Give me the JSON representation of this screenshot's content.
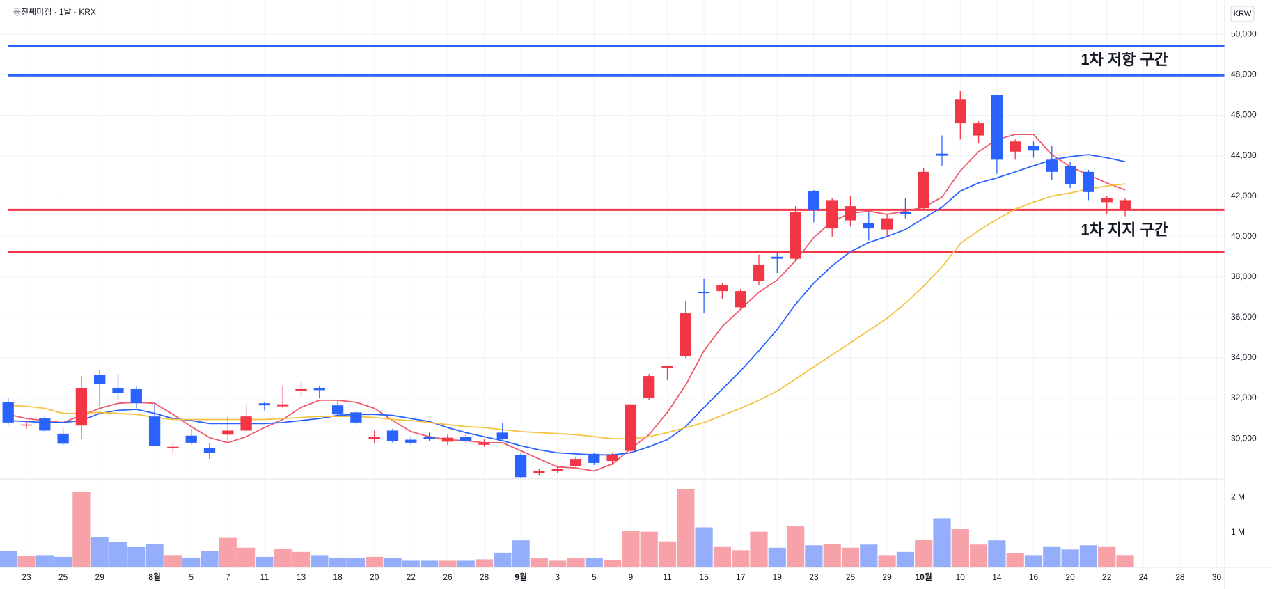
{
  "chart_data": {
    "type": "candlestick",
    "title": "동진쎄미켐 · 1날 · KRX",
    "currency_label": "KRW",
    "categories": [
      null,
      "23",
      null,
      "25",
      null,
      "29",
      null,
      null,
      "8월",
      null,
      "5",
      null,
      "7",
      null,
      "11",
      null,
      "13",
      null,
      "18",
      null,
      "20",
      null,
      "22",
      null,
      "26",
      null,
      "28",
      null,
      "9월",
      null,
      "3",
      null,
      "5",
      null,
      "9",
      null,
      "11",
      null,
      "15",
      null,
      "17",
      null,
      "19",
      null,
      "23",
      null,
      "25",
      null,
      "29",
      null,
      "10월",
      null,
      "10",
      null,
      "14",
      null,
      "16",
      null,
      "20",
      null,
      "22",
      null,
      "24",
      null,
      "28",
      null,
      "30"
    ],
    "open": [
      31800,
      30650,
      31000,
      30250,
      30650,
      33150,
      32500,
      32450,
      31100,
      29550,
      30150,
      29550,
      30200,
      30400,
      31750,
      31600,
      32350,
      32500,
      31650,
      31300,
      30000,
      30400,
      29950,
      30100,
      29850,
      30100,
      29700,
      30300,
      29200,
      28300,
      28400,
      28650,
      29250,
      28900,
      29400,
      32000,
      33500,
      34100,
      37250,
      37300,
      36500,
      37800,
      39000,
      38900,
      42250,
      40400,
      40800,
      40650,
      40350,
      41200,
      41400,
      44100,
      45600,
      45000,
      47000,
      44200,
      44500,
      43800,
      43500,
      43200,
      41700,
      41300,
      null,
      null,
      null,
      null,
      null
    ],
    "high": [
      32000,
      30900,
      31100,
      30500,
      33100,
      33400,
      33200,
      32600,
      31700,
      29800,
      30500,
      29800,
      31100,
      31700,
      31800,
      32600,
      32800,
      32600,
      31900,
      31400,
      30400,
      30500,
      30100,
      30300,
      30200,
      30200,
      30000,
      30800,
      29300,
      28500,
      28600,
      29100,
      29300,
      29300,
      31700,
      33200,
      33600,
      36800,
      37900,
      37700,
      37400,
      39100,
      39200,
      41500,
      42300,
      41900,
      42000,
      41200,
      41100,
      41900,
      43400,
      45000,
      47200,
      45700,
      47000,
      44800,
      44700,
      44500,
      43700,
      43300,
      42000,
      41900,
      null,
      null,
      null,
      null,
      null
    ],
    "low": [
      30700,
      30500,
      30300,
      29700,
      30000,
      31600,
      31900,
      31500,
      29650,
      29300,
      29700,
      29000,
      29900,
      30300,
      31400,
      31500,
      32100,
      32000,
      31100,
      30700,
      29800,
      29800,
      29700,
      29900,
      29700,
      29800,
      29600,
      29900,
      28050,
      28200,
      28300,
      28600,
      28700,
      28700,
      29300,
      31900,
      32900,
      34000,
      36200,
      36900,
      36400,
      37600,
      38200,
      38800,
      40700,
      40000,
      40500,
      39800,
      40000,
      40900,
      41300,
      43500,
      44800,
      44600,
      43100,
      43800,
      43900,
      42800,
      42400,
      41800,
      41100,
      41000,
      null,
      null,
      null,
      null,
      null
    ],
    "close": [
      30800,
      30700,
      30400,
      29750,
      32500,
      32700,
      32250,
      31750,
      29650,
      29600,
      29800,
      29300,
      30400,
      31100,
      31650,
      31700,
      32450,
      32400,
      31200,
      30800,
      30100,
      29900,
      29800,
      30000,
      30050,
      29900,
      29800,
      30000,
      28100,
      28400,
      28500,
      29000,
      28800,
      29200,
      31700,
      33100,
      33600,
      36200,
      37200,
      37600,
      37300,
      38600,
      38900,
      41200,
      41300,
      41800,
      41500,
      40400,
      40900,
      41100,
      43200,
      44000,
      46800,
      45600,
      43800,
      44700,
      44250,
      43200,
      42600,
      42200,
      41900,
      41800,
      null,
      null,
      null,
      null,
      null
    ],
    "volume": [
      470000,
      330000,
      350000,
      300000,
      2160000,
      860000,
      720000,
      580000,
      670000,
      350000,
      280000,
      470000,
      840000,
      560000,
      300000,
      530000,
      440000,
      350000,
      280000,
      260000,
      300000,
      260000,
      190000,
      190000,
      190000,
      190000,
      230000,
      420000,
      770000,
      260000,
      190000,
      260000,
      260000,
      210000,
      1050000,
      1020000,
      740000,
      2230000,
      1140000,
      600000,
      490000,
      1020000,
      560000,
      1190000,
      630000,
      670000,
      560000,
      650000,
      350000,
      440000,
      790000,
      1400000,
      1090000,
      650000,
      770000,
      400000,
      350000,
      600000,
      510000,
      630000,
      600000,
      350000,
      null,
      null,
      null,
      null,
      null
    ],
    "up_color": "#f23645",
    "down_color": "#2962ff",
    "volume_up_color": "#f7a1a9",
    "volume_down_color": "#95aefc",
    "ylim": [
      28040,
      51700
    ],
    "yticks": [
      {
        "value": 30000,
        "label": "30,000"
      },
      {
        "value": 32000,
        "label": "32,000"
      },
      {
        "value": 34000,
        "label": "34,000"
      },
      {
        "value": 36000,
        "label": "36,000"
      },
      {
        "value": 38000,
        "label": "38,000"
      },
      {
        "value": 40000,
        "label": "40,000"
      },
      {
        "value": 42000,
        "label": "42,000"
      },
      {
        "value": 44000,
        "label": "44,000"
      },
      {
        "value": 46000,
        "label": "46,000"
      },
      {
        "value": 48000,
        "label": "48,000"
      },
      {
        "value": 50000,
        "label": "50,000"
      }
    ],
    "volume_ylim": [
      0,
      2500000
    ],
    "volume_yticks": [
      {
        "value": 1000000,
        "label": "1 M"
      },
      {
        "value": 2000000,
        "label": "2 M"
      }
    ],
    "grid": true,
    "moving_averages": [
      {
        "color": "#ef5a6a",
        "values": [
          31200,
          31000,
          30900,
          30800,
          31150,
          31500,
          31750,
          31800,
          31750,
          31200,
          30600,
          30050,
          29800,
          30100,
          30550,
          30950,
          31550,
          31900,
          31900,
          31800,
          31500,
          30900,
          30350,
          30100,
          29950,
          29900,
          29800,
          29800,
          29400,
          29000,
          28600,
          28550,
          28400,
          28750,
          29500,
          30200,
          31300,
          32650,
          34350,
          35550,
          36400,
          37250,
          37850,
          38800,
          39950,
          40750,
          41150,
          41250,
          41100,
          41250,
          41450,
          41950,
          43250,
          44200,
          44800,
          45050,
          45050,
          44050,
          43450,
          43050,
          42650,
          42300,
          null,
          null,
          null,
          null,
          null
        ]
      },
      {
        "color": "#2962ff",
        "values": [
          30900,
          30850,
          30800,
          30800,
          30900,
          31250,
          31400,
          31450,
          31250,
          31000,
          30900,
          30750,
          30750,
          30750,
          30750,
          30800,
          30900,
          31000,
          31150,
          31200,
          31200,
          31150,
          31000,
          30850,
          30550,
          30300,
          30100,
          29900,
          29650,
          29450,
          29300,
          29250,
          29200,
          29200,
          29300,
          29600,
          29950,
          30600,
          31550,
          32450,
          33350,
          34350,
          35400,
          36650,
          37700,
          38550,
          39250,
          39700,
          40000,
          40350,
          40900,
          41450,
          42250,
          42650,
          42900,
          43200,
          43500,
          43800,
          43950,
          44050,
          43900,
          43700,
          null,
          null,
          null,
          null,
          null
        ]
      },
      {
        "color": "#f5c242",
        "values": [
          31650,
          31600,
          31500,
          31250,
          31250,
          31300,
          31250,
          31200,
          31050,
          30950,
          30950,
          30950,
          30950,
          30950,
          30950,
          31000,
          31050,
          31100,
          31100,
          31100,
          31050,
          30950,
          30900,
          30800,
          30700,
          30600,
          30550,
          30450,
          30350,
          30300,
          30250,
          30200,
          30100,
          30000,
          30000,
          30100,
          30300,
          30550,
          30800,
          31150,
          31500,
          31900,
          32350,
          32950,
          33550,
          34150,
          34750,
          35350,
          35950,
          36700,
          37550,
          38500,
          39650,
          40300,
          40850,
          41350,
          41700,
          42000,
          42150,
          42350,
          42500,
          42600,
          null,
          null,
          null,
          null,
          null
        ]
      }
    ],
    "zones": [
      {
        "label": "1차 저항 구간",
        "color": "#2962ff",
        "levels": [
          49430,
          47970
        ]
      },
      {
        "label": "1차 지지 구간",
        "color": "#f23645",
        "levels": [
          41320,
          39250
        ]
      }
    ]
  }
}
